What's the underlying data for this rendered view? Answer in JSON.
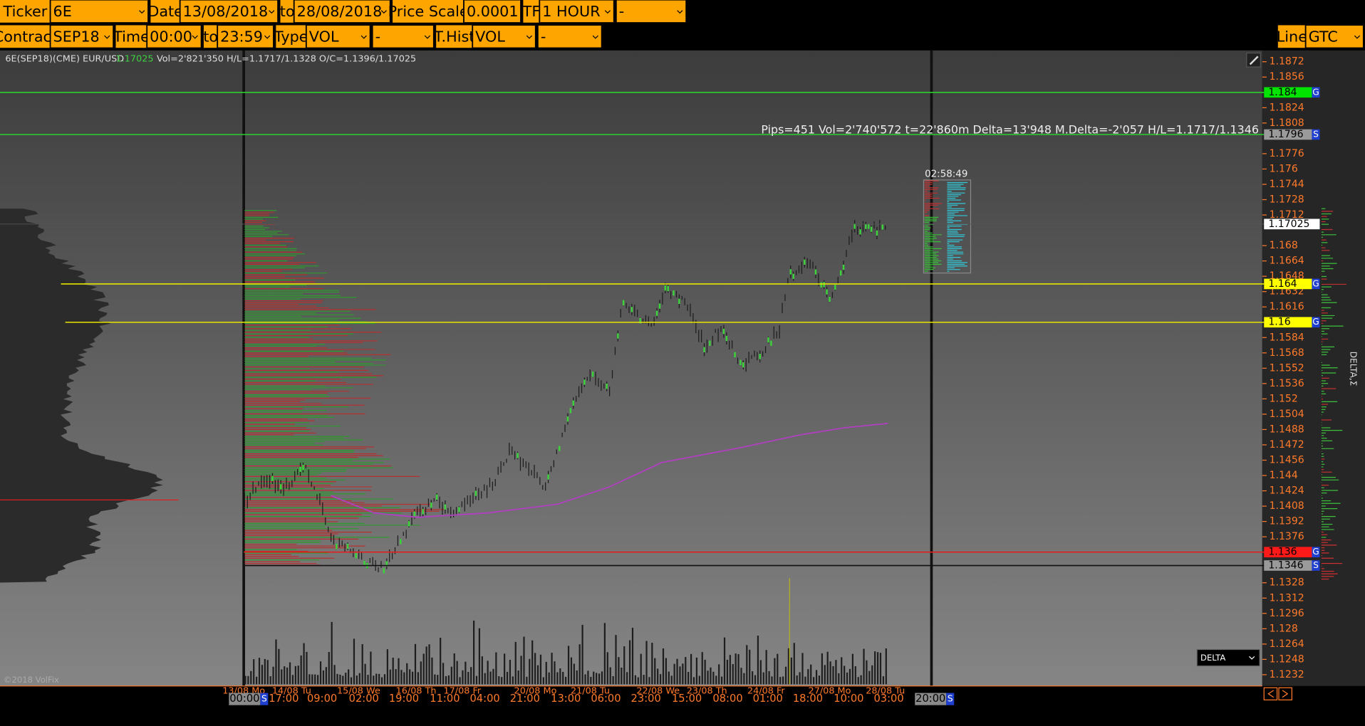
{
  "toolbar": {
    "row1": [
      {
        "label": "Ticker",
        "value": "6E"
      },
      {
        "label": "Date",
        "value": "13/08/2018"
      },
      {
        "label": "to",
        "value": "28/08/2018"
      },
      {
        "label": "Price Scale",
        "value": "0.0001"
      },
      {
        "label": "TF",
        "value": "1 HOUR"
      },
      {
        "value": "-"
      }
    ],
    "row2": [
      {
        "label": "Contract",
        "value": "SEP18"
      },
      {
        "label": "Time",
        "value": "00:00"
      },
      {
        "label": "to",
        "value": "23:59"
      },
      {
        "label": "Type",
        "value": "VOL"
      },
      {
        "value": "-"
      },
      {
        "label": "T.Hist",
        "value": "VOL"
      },
      {
        "value": "-"
      }
    ],
    "right": [
      {
        "label": "Line",
        "value": "GTC"
      }
    ]
  },
  "info": {
    "symbol": "6E(SEP18)(CME) EUR/USD",
    "last": "1.17025",
    "stats": "Vol=2'821'350 H/L=1.1717/1.1328 O/C=1.1396/1.17025"
  },
  "annotation": "Pips=451 Vol=2'740'572 t=22'860m Delta=13'948 M.Delta=-2'057 H/L=1.1717/1.1346",
  "timer": "02:58:49",
  "price_axis": {
    "ticks": [
      1.1872,
      1.1856,
      1.1824,
      1.1808,
      1.1776,
      1.176,
      1.1744,
      1.1728,
      1.1712,
      1.168,
      1.1664,
      1.1648,
      1.1632,
      1.1616,
      1.1584,
      1.1568,
      1.1552,
      1.1536,
      1.152,
      1.1504,
      1.1488,
      1.1472,
      1.1456,
      1.144,
      1.1424,
      1.1408,
      1.1392,
      1.1376,
      1.1328,
      1.1312,
      1.1296,
      1.128,
      1.1264,
      1.1248,
      1.1232
    ]
  },
  "current_price": 1.17025,
  "levels": [
    {
      "price": 1.184,
      "badge": "G",
      "color": "#00e400",
      "line": "#2bd02b"
    },
    {
      "price": 1.1796,
      "badge": "S",
      "color": "#9a9a9a",
      "line": "#2bd02b"
    },
    {
      "price": 1.164,
      "badge": "G",
      "color": "#ffff00",
      "line": "#e6e600"
    },
    {
      "price": 1.16,
      "badge": "G",
      "color": "#ffff00",
      "line": "#e6e600"
    },
    {
      "price": 1.136,
      "badge": "G",
      "color": "#ff1a1a",
      "line": "#e02020"
    },
    {
      "price": 1.1346,
      "badge": "S",
      "color": "#9a9a9a",
      "line": "#111111"
    }
  ],
  "time_axis": {
    "dates": [
      "13/08 Mo",
      "14/08 Tu",
      "15/08 We",
      "16/08 Th",
      "17/08 Fr",
      "20/08 Mo",
      "21/08 Tu",
      "22/08 We",
      "23/08 Th",
      "24/08 Fr",
      "27/08 Mo",
      "28/08 Tu"
    ],
    "times": [
      {
        "text": "00:00",
        "badge": "S"
      },
      {
        "text": "17:00"
      },
      {
        "text": "09:00"
      },
      {
        "text": "02:00"
      },
      {
        "text": "19:00"
      },
      {
        "text": "11:00"
      },
      {
        "text": "04:00"
      },
      {
        "text": "21:00"
      },
      {
        "text": "13:00"
      },
      {
        "text": "06:00"
      },
      {
        "text": "23:00"
      },
      {
        "text": "15:00"
      },
      {
        "text": "08:00"
      },
      {
        "text": "01:00"
      },
      {
        "text": "18:00"
      },
      {
        "text": "10:00"
      },
      {
        "text": "03:00"
      },
      {
        "text": "20:00",
        "badge": "S"
      }
    ]
  },
  "indicator_select": "DELTA",
  "side_label": "DELTA,Σ",
  "copyright": "©2018 VolFix"
}
